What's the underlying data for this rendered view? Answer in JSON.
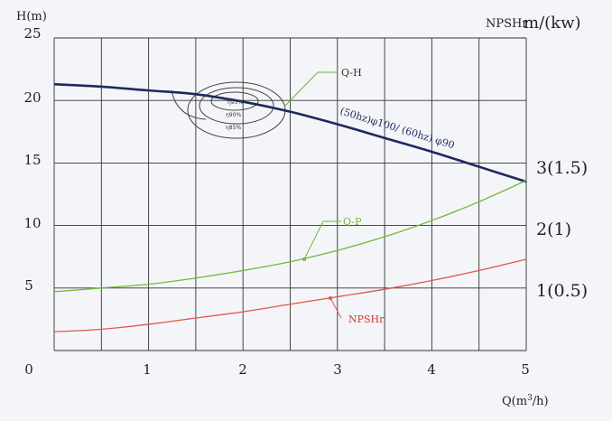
{
  "chart_data": {
    "type": "line",
    "x_axis": {
      "label_main": "Q(m",
      "label_sup": "3",
      "label_end": "/h)",
      "min": 0,
      "max": 5,
      "ticks": [
        0,
        1,
        2,
        3,
        4,
        5
      ]
    },
    "y_left": {
      "label": "H(m)",
      "min": 0,
      "max": 25,
      "ticks": [
        5,
        10,
        15,
        20,
        25
      ]
    },
    "y_right": {
      "label_small": "NPSHr",
      "label_big": "m/(kw)",
      "ticks": [
        {
          "label": "1(0.5)",
          "at_left": 5
        },
        {
          "label": "2(1)",
          "at_left": 10
        },
        {
          "label": "3(1.5)",
          "at_left": 15
        }
      ]
    },
    "grid": true,
    "series": [
      {
        "name": "Q-H",
        "color": "#1e2a5e",
        "x": [
          0,
          0.5,
          1,
          1.5,
          2,
          2.5,
          3,
          3.5,
          4,
          4.5,
          5
        ],
        "y": [
          21.3,
          21.1,
          20.8,
          20.5,
          19.9,
          19.1,
          18.1,
          17.0,
          15.9,
          14.7,
          13.5
        ]
      },
      {
        "name": "Q-P",
        "color": "#6dbb3a",
        "x": [
          0,
          0.5,
          1,
          1.5,
          2,
          2.5,
          3,
          3.5,
          4,
          4.5,
          5
        ],
        "y": [
          4.7,
          5.0,
          5.3,
          5.8,
          6.4,
          7.1,
          8.0,
          9.1,
          10.4,
          11.9,
          13.6
        ]
      },
      {
        "name": "NPSHr",
        "color": "#e2564a",
        "x": [
          0,
          0.5,
          1,
          1.5,
          2,
          2.5,
          3,
          3.5,
          4,
          4.5,
          5
        ],
        "y": [
          1.5,
          1.7,
          2.1,
          2.6,
          3.1,
          3.7,
          4.3,
          4.9,
          5.6,
          6.4,
          7.3
        ]
      }
    ],
    "annotations": [
      {
        "text": "Q-H",
        "color": "#333"
      },
      {
        "text": "Q-P",
        "color": "#6dbb3a"
      },
      {
        "text": "NPSHr",
        "color": "#d23b30"
      },
      {
        "text": "(50hz)φ100/ (60hz) φ90",
        "color": "#1e2a5e"
      }
    ],
    "efficiency_contours": [
      "η95%",
      "η90%",
      "η85%"
    ]
  }
}
